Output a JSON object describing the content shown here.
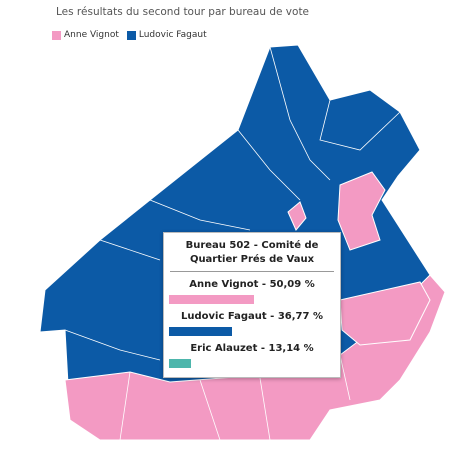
{
  "title": "Les résultats du second tour par bureau de vote",
  "legend": [
    {
      "name": "Anne Vignot",
      "color": "#f39ac3"
    },
    {
      "name": "Ludovic Fagaut",
      "color": "#0c5aa6"
    }
  ],
  "tooltip": {
    "title": "Bureau 502 - Comité de Quartier Prés de Vaux",
    "max": 100,
    "rows": [
      {
        "name": "Anne Vignot",
        "value": 50.09,
        "value_label": "50,09 %",
        "color": "#f39ac3"
      },
      {
        "name": "Ludovic Fagaut",
        "value": 36.77,
        "value_label": "36,77 %",
        "color": "#0c5aa6"
      },
      {
        "name": "Eric Alauzet",
        "value": 13.14,
        "value_label": "13,14 %",
        "color": "#4db6ac"
      }
    ]
  }
}
